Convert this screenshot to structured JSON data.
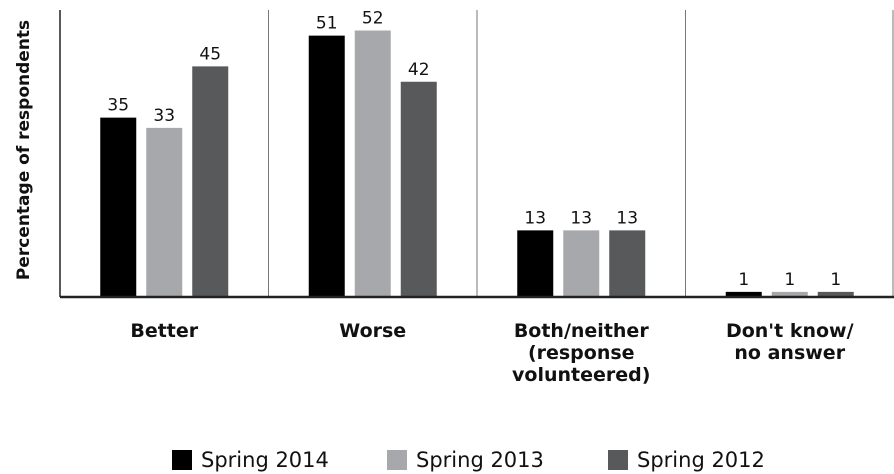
{
  "chart_data": {
    "type": "bar",
    "y_label": "Percentage of respondents",
    "categories": [
      "Better",
      "Worse",
      "Both/neither\n(response\nvolunteered)",
      "Don't know/\nno answer"
    ],
    "series": [
      {
        "name": "Spring 2014",
        "color": "#000000",
        "values": [
          35,
          51,
          13,
          1
        ]
      },
      {
        "name": "Spring 2013",
        "color": "#a7a8ab",
        "values": [
          33,
          52,
          13,
          1
        ]
      },
      {
        "name": "Spring 2012",
        "color": "#58595b",
        "values": [
          45,
          42,
          13,
          1
        ]
      }
    ],
    "ylim": [
      0,
      56
    ]
  }
}
